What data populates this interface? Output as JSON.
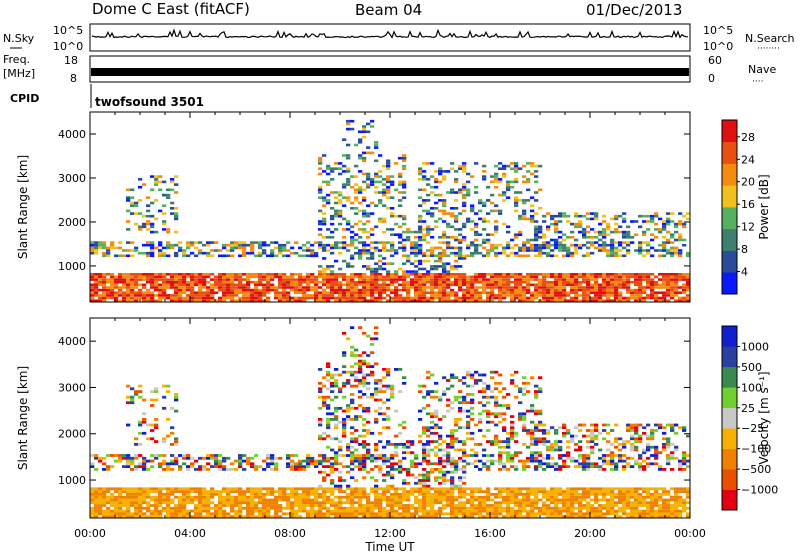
{
  "header": {
    "station": "Dome C East (fitACF)",
    "beam": "Beam 04",
    "date": "01/Dec/2013"
  },
  "strip_panels": {
    "nsky": {
      "label": "N.Sky",
      "yticks": [
        "10^5",
        "10^0"
      ],
      "right_ticks": [
        "10^5",
        "10^0"
      ],
      "right_label": "N.Search"
    },
    "freq": {
      "label_line1": "Freq.",
      "label_line2": "[MHz]",
      "yticks": [
        "18",
        "8"
      ],
      "right_ticks": [
        "60",
        "0"
      ],
      "right_label": "Nave"
    },
    "cpid": {
      "label": "CPID",
      "value": "twofsound 3501"
    }
  },
  "colors": {
    "power_scale": [
      "#0a1aff",
      "#2a4a9a",
      "#3f7f6f",
      "#55b060",
      "#f0c020",
      "#f48a10",
      "#e85010",
      "#e01010"
    ],
    "velocity_scale": [
      "#e00010",
      "#e85000",
      "#f08000",
      "#f6b000",
      "#c8c8c8",
      "#6fd030",
      "#3a8a50",
      "#2a40a0",
      "#1020d0"
    ]
  },
  "chart_data": [
    {
      "type": "heatmap",
      "title": "",
      "xlabel": "",
      "ylabel": "Slant Range [km]",
      "x_range_hours": [
        0,
        24
      ],
      "ylim": [
        180,
        4500
      ],
      "yticks": [
        "1000",
        "2000",
        "3000",
        "4000"
      ],
      "colorbar": {
        "label": "Power [dB]",
        "ticks": [
          "4",
          "8",
          "12",
          "16",
          "20",
          "24",
          "28"
        ],
        "range": [
          0,
          31
        ]
      }
    },
    {
      "type": "heatmap",
      "title": "",
      "xlabel": "Time UT",
      "ylabel": "Slant Range [km]",
      "x_range_hours": [
        0,
        24
      ],
      "xticks": [
        "00:00",
        "04:00",
        "08:00",
        "12:00",
        "16:00",
        "20:00",
        "00:00"
      ],
      "ylim": [
        180,
        4500
      ],
      "yticks": [
        "1000",
        "2000",
        "3000",
        "4000"
      ],
      "colorbar": {
        "label": "Velocity [m s⁻¹]",
        "ticks": [
          "1000",
          "500",
          "100",
          "25",
          "−25",
          "−100",
          "−500",
          "−1000"
        ]
      }
    }
  ]
}
